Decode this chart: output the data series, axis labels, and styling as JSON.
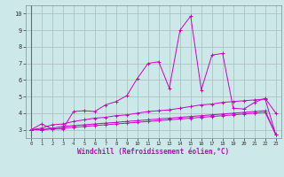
{
  "title": "",
  "xlabel": "Windchill (Refroidissement éolien,°C)",
  "ylabel": "",
  "bg_color": "#cce8e8",
  "line_color": "#cc00cc",
  "grid_color": "#aabbbb",
  "xlim": [
    -0.5,
    23.5
  ],
  "ylim": [
    2.5,
    10.5
  ],
  "xticks": [
    0,
    1,
    2,
    3,
    4,
    5,
    6,
    7,
    8,
    9,
    10,
    11,
    12,
    13,
    14,
    15,
    16,
    17,
    18,
    19,
    20,
    21,
    22,
    23
  ],
  "yticks": [
    3,
    4,
    5,
    6,
    7,
    8,
    9,
    10
  ],
  "series": [
    [
      3.0,
      3.35,
      3.05,
      3.05,
      4.1,
      4.15,
      4.1,
      4.5,
      4.7,
      5.05,
      6.1,
      7.0,
      7.1,
      5.5,
      9.0,
      9.85,
      5.4,
      7.5,
      7.6,
      4.3,
      4.25,
      4.65,
      4.9,
      4.0
    ],
    [
      3.0,
      3.1,
      3.3,
      3.35,
      3.5,
      3.6,
      3.7,
      3.75,
      3.85,
      3.9,
      4.0,
      4.1,
      4.15,
      4.2,
      4.3,
      4.4,
      4.5,
      4.55,
      4.65,
      4.7,
      4.75,
      4.8,
      4.85,
      2.7
    ],
    [
      3.0,
      3.0,
      3.1,
      3.2,
      3.25,
      3.3,
      3.35,
      3.4,
      3.45,
      3.5,
      3.55,
      3.6,
      3.65,
      3.7,
      3.75,
      3.8,
      3.85,
      3.9,
      3.95,
      4.0,
      4.05,
      4.1,
      4.15,
      2.7
    ],
    [
      3.0,
      3.0,
      3.05,
      3.1,
      3.15,
      3.2,
      3.25,
      3.3,
      3.35,
      3.4,
      3.45,
      3.5,
      3.55,
      3.6,
      3.65,
      3.7,
      3.75,
      3.8,
      3.85,
      3.9,
      3.95,
      4.0,
      4.05,
      2.7
    ]
  ]
}
